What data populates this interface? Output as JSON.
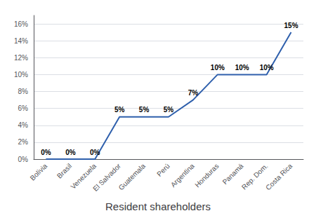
{
  "chart_data": {
    "type": "line",
    "title": "Resident shareholders",
    "categories": [
      "Bolivia",
      "Brasil",
      "Venezuela",
      "El Salvador",
      "Guatemala",
      "Perú",
      "Argentina",
      "Honduras",
      "Panamá",
      "Rep. Dom.",
      "Costa Rica"
    ],
    "values": [
      0,
      0,
      0,
      5,
      5,
      5,
      7,
      10,
      10,
      10,
      15
    ],
    "value_labels": [
      "0%",
      "0%",
      "0%",
      "5%",
      "5%",
      "5%",
      "7%",
      "10%",
      "10%",
      "10%",
      "15%"
    ],
    "data_labels": true,
    "color": "#2E5FAC",
    "ylim": [
      0,
      17
    ],
    "yticks": [
      {
        "value": 0,
        "label": "0%"
      },
      {
        "value": 2,
        "label": "2%"
      },
      {
        "value": 4,
        "label": "4%"
      },
      {
        "value": 6,
        "label": "6%"
      },
      {
        "value": 8,
        "label": "8%"
      },
      {
        "value": 10,
        "label": "10%"
      },
      {
        "value": 12,
        "label": "12%"
      },
      {
        "value": 14,
        "label": "14%"
      },
      {
        "value": 16,
        "label": "16%"
      }
    ],
    "grid": true
  }
}
